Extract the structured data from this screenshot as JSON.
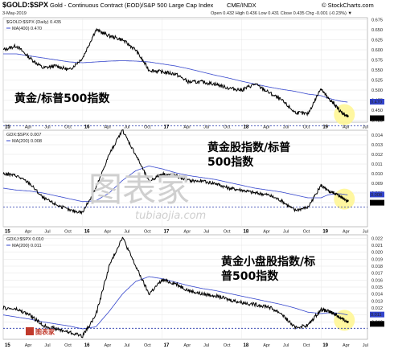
{
  "header": {
    "symbol": "$GOLD:$SPX",
    "description": "Gold - Continuous Contract (EOD)/S&P 500 Large Cap Index",
    "exchange": "CME/INDX",
    "date": "3-May-2019",
    "brand": "© StockCharts.com",
    "ohlc": "Open 0.432  High 0.436  Low 0.431  Close 0.435  Chg -0.001 (-0.23%) ▼"
  },
  "x_axis": {
    "labels": [
      "15",
      "Apr",
      "Jul",
      "Oct",
      "16",
      "Apr",
      "Jul",
      "Oct",
      "17",
      "Apr",
      "Jul",
      "Oct",
      "18",
      "Apr",
      "Jul",
      "Oct",
      "19",
      "Apr",
      "Jul"
    ],
    "bold": [
      true,
      false,
      false,
      false,
      true,
      false,
      false,
      false,
      true,
      false,
      false,
      false,
      true,
      false,
      false,
      false,
      true,
      false,
      false
    ]
  },
  "watermark": {
    "main": "图表家",
    "url": "tubiaojia.com"
  },
  "logo_text": "图表家",
  "chart_data": [
    {
      "type": "line",
      "legend_main": "$GOLD:$SPX (Daily) 0.435",
      "legend_ma": "MA(400) 0.470",
      "annotation": "黄金/标普500指数",
      "ylim": [
        0.42,
        0.68
      ],
      "yticks": [
        0.425,
        0.45,
        0.475,
        0.5,
        0.525,
        0.55,
        0.575,
        0.6,
        0.625,
        0.65,
        0.675
      ],
      "last_label": "0.435",
      "ma_label": "0.470",
      "x": [
        "2015-01",
        "2015-03",
        "2015-05",
        "2015-07",
        "2015-09",
        "2015-11",
        "2016-01",
        "2016-03",
        "2016-05",
        "2016-07",
        "2016-09",
        "2016-11",
        "2017-01",
        "2017-03",
        "2017-05",
        "2017-07",
        "2017-09",
        "2017-11",
        "2018-01",
        "2018-03",
        "2018-05",
        "2018-07",
        "2018-09",
        "2018-11",
        "2019-01",
        "2019-02",
        "2019-03",
        "2019-04",
        "2019-05"
      ],
      "series": [
        {
          "values": [
            0.6,
            0.61,
            0.58,
            0.555,
            0.56,
            0.55,
            0.58,
            0.65,
            0.635,
            0.625,
            0.6,
            0.55,
            0.545,
            0.54,
            0.52,
            0.52,
            0.515,
            0.505,
            0.5,
            0.515,
            0.495,
            0.475,
            0.445,
            0.44,
            0.505,
            0.48,
            0.465,
            0.445,
            0.435
          ]
        },
        {
          "values": [
            0.59,
            0.59,
            0.585,
            0.58,
            0.575,
            0.57,
            0.568,
            0.57,
            0.572,
            0.573,
            0.572,
            0.57,
            0.565,
            0.56,
            0.553,
            0.545,
            0.537,
            0.53,
            0.522,
            0.515,
            0.508,
            0.502,
            0.497,
            0.49,
            0.486,
            0.48,
            0.476,
            0.472,
            0.47
          ]
        }
      ]
    },
    {
      "type": "line",
      "legend_main": "GDX:$SPX 0.007",
      "legend_ma": "MA(200) 0.008",
      "annotation_lines": [
        "黄金股指数/标普",
        "500指数"
      ],
      "ylim": [
        0.0045,
        0.0145
      ],
      "yticks": [
        0.007,
        0.008,
        0.009,
        0.01,
        0.011,
        0.012,
        0.013,
        0.014
      ],
      "last_label": "0.007",
      "ma_label": "0.008",
      "x": [
        "2015-01",
        "2015-03",
        "2015-05",
        "2015-07",
        "2015-09",
        "2015-11",
        "2016-01",
        "2016-03",
        "2016-05",
        "2016-07",
        "2016-09",
        "2016-11",
        "2017-01",
        "2017-03",
        "2017-05",
        "2017-07",
        "2017-09",
        "2017-11",
        "2018-01",
        "2018-03",
        "2018-05",
        "2018-07",
        "2018-09",
        "2018-11",
        "2019-01",
        "2019-02",
        "2019-03",
        "2019-04",
        "2019-05"
      ],
      "series": [
        {
          "values": [
            0.01,
            0.0098,
            0.009,
            0.0075,
            0.0068,
            0.0062,
            0.006,
            0.0085,
            0.012,
            0.0145,
            0.012,
            0.0092,
            0.01,
            0.0098,
            0.0093,
            0.0092,
            0.009,
            0.0085,
            0.0083,
            0.008,
            0.0078,
            0.0072,
            0.0062,
            0.0065,
            0.0088,
            0.0082,
            0.008,
            0.0076,
            0.0072
          ]
        },
        {
          "values": [
            0.0085,
            0.0083,
            0.0082,
            0.008,
            0.0077,
            0.0074,
            0.0071,
            0.0072,
            0.008,
            0.0093,
            0.0103,
            0.0108,
            0.0105,
            0.0101,
            0.0098,
            0.0096,
            0.0094,
            0.0091,
            0.0088,
            0.0085,
            0.0083,
            0.0081,
            0.0078,
            0.0075,
            0.0075,
            0.0078,
            0.0079,
            0.0079,
            0.0078
          ]
        }
      ]
    },
    {
      "type": "line",
      "legend_main": "GDXJ:$SPX 0.010",
      "legend_ma": "MA(200) 0.011",
      "annotation_lines": [
        "黄金小盘股指数/标",
        "普500指数"
      ],
      "ylim": [
        0.0075,
        0.0225
      ],
      "yticks": [
        0.01,
        0.011,
        0.012,
        0.013,
        0.014,
        0.015,
        0.016,
        0.017,
        0.018,
        0.019,
        0.02,
        0.021,
        0.022
      ],
      "last_label": "0.010",
      "ma_label": "0.011",
      "x": [
        "2015-01",
        "2015-03",
        "2015-05",
        "2015-07",
        "2015-09",
        "2015-11",
        "2016-01",
        "2016-03",
        "2016-05",
        "2016-07",
        "2016-09",
        "2016-11",
        "2017-01",
        "2017-03",
        "2017-05",
        "2017-07",
        "2017-09",
        "2017-11",
        "2018-01",
        "2018-03",
        "2018-05",
        "2018-07",
        "2018-09",
        "2018-11",
        "2019-01",
        "2019-02",
        "2019-03",
        "2019-04",
        "2019-05"
      ],
      "series": [
        {
          "values": [
            0.012,
            0.0118,
            0.011,
            0.0095,
            0.009,
            0.0085,
            0.008,
            0.011,
            0.018,
            0.0222,
            0.018,
            0.014,
            0.016,
            0.0155,
            0.0145,
            0.014,
            0.0138,
            0.0132,
            0.0128,
            0.0125,
            0.0122,
            0.0112,
            0.0092,
            0.0095,
            0.0118,
            0.0115,
            0.0112,
            0.0105,
            0.01
          ]
        },
        {
          "values": [
            0.011,
            0.0107,
            0.0104,
            0.01,
            0.0097,
            0.0094,
            0.009,
            0.0093,
            0.0115,
            0.014,
            0.0158,
            0.0165,
            0.0162,
            0.0157,
            0.0152,
            0.0148,
            0.0145,
            0.0141,
            0.0137,
            0.0133,
            0.0129,
            0.0125,
            0.012,
            0.0114,
            0.0112,
            0.0113,
            0.0113,
            0.0112,
            0.011
          ]
        }
      ]
    }
  ]
}
